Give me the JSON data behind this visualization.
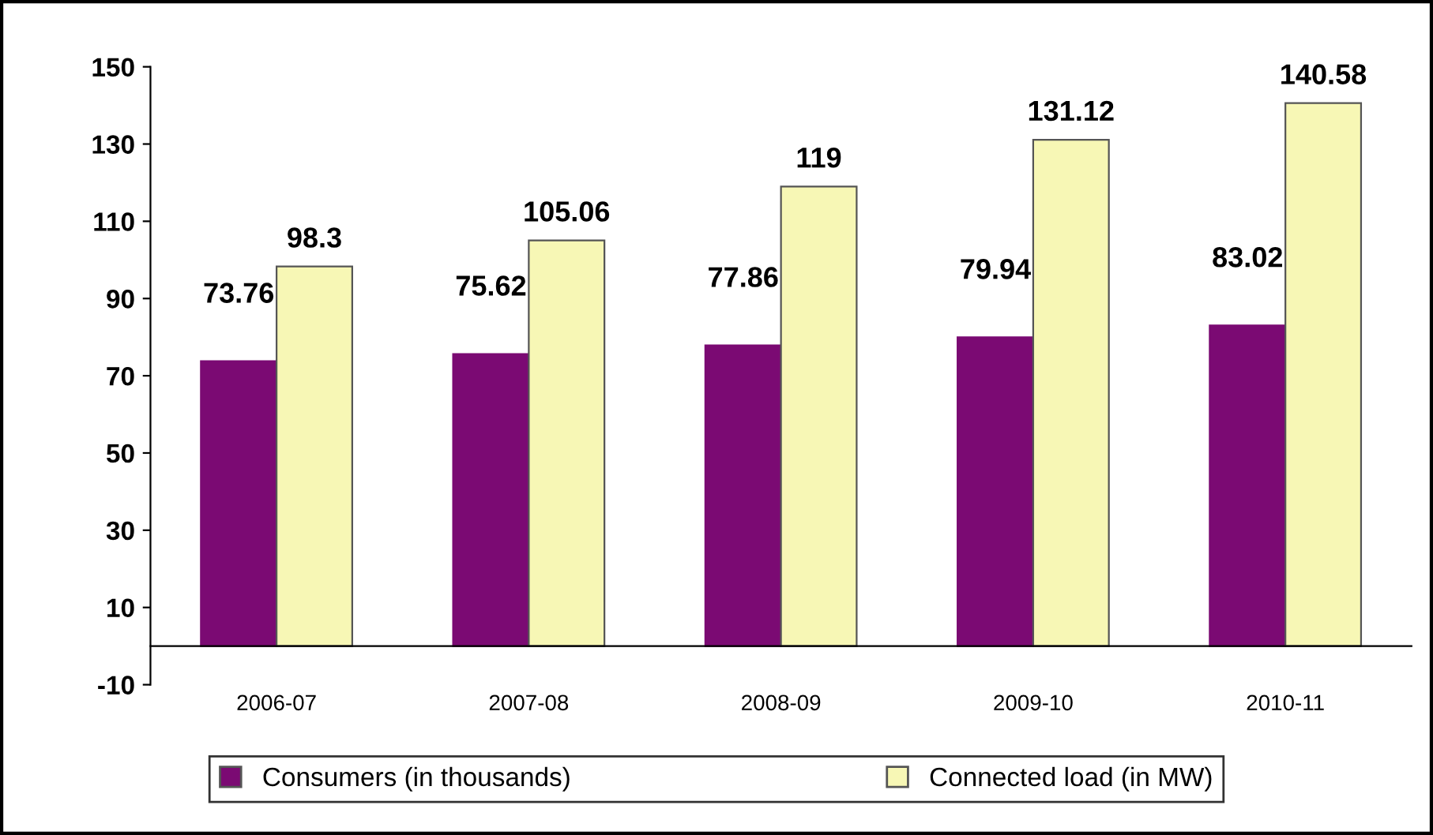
{
  "chart_data": {
    "type": "bar",
    "categories": [
      "2006-07",
      "2007-08",
      "2008-09",
      "2009-10",
      "2010-11"
    ],
    "series": [
      {
        "name": "Consumers (in thousands)",
        "color": "#7b0a73",
        "values": [
          73.76,
          75.62,
          77.86,
          79.94,
          83.02
        ]
      },
      {
        "name": "Connected load (in MW)",
        "color": "#f7f7b5",
        "values": [
          98.3,
          105.06,
          119,
          131.12,
          140.58
        ]
      }
    ],
    "ylim": [
      -10,
      150
    ],
    "yticks": [
      -10,
      10,
      30,
      50,
      70,
      90,
      110,
      130,
      150
    ],
    "data_labels": true,
    "grid": false,
    "legend": "bottom"
  }
}
